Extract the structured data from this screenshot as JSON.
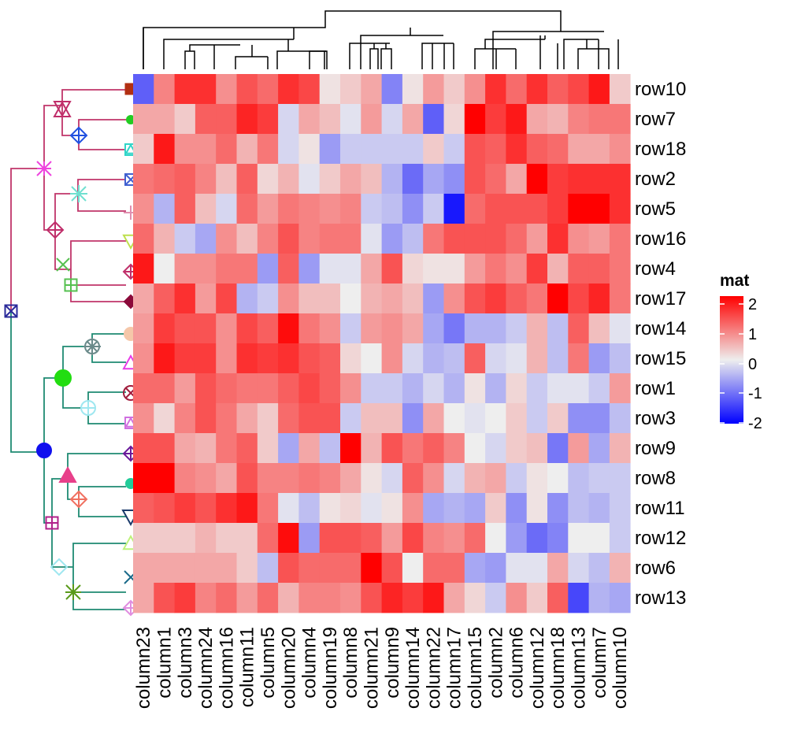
{
  "chart_data": {
    "type": "heatmap",
    "rows": [
      "row10",
      "row7",
      "row18",
      "row2",
      "row5",
      "row16",
      "row4",
      "row17",
      "row14",
      "row15",
      "row1",
      "row3",
      "row9",
      "row8",
      "row11",
      "row12",
      "row6",
      "row13"
    ],
    "columns": [
      "column23",
      "column1",
      "column3",
      "column24",
      "column16",
      "column11",
      "column5",
      "column20",
      "column4",
      "column19",
      "column8",
      "column21",
      "column9",
      "column14",
      "column22",
      "column17",
      "column15",
      "column2",
      "column6",
      "column12",
      "column18",
      "column13",
      "column7",
      "column10"
    ],
    "values": [
      [
        -1.2,
        0.9,
        1.6,
        1.6,
        0.8,
        1.3,
        1.1,
        1.6,
        1.4,
        0.1,
        0.3,
        0.6,
        -0.9,
        0.1,
        0.7,
        0.3,
        0.8,
        1.6,
        1.1,
        1.6,
        1.2,
        1.4,
        1.8,
        0.3
      ],
      [
        0.6,
        0.6,
        0.3,
        1.2,
        1.2,
        1.7,
        1.5,
        -0.2,
        0.6,
        0.4,
        -0.1,
        0.7,
        -0.2,
        0.6,
        -1.2,
        0.2,
        2.1,
        1.5,
        1.8,
        0.6,
        0.5,
        0.9,
        1.0,
        1.0
      ],
      [
        0.3,
        1.8,
        0.8,
        0.8,
        1.1,
        0.5,
        1.0,
        -0.2,
        0.1,
        -0.7,
        -0.3,
        -0.3,
        -0.3,
        -0.3,
        0.3,
        -0.3,
        1.3,
        1.2,
        1.6,
        1.2,
        1.1,
        0.6,
        0.6,
        0.8
      ],
      [
        1.0,
        1.1,
        1.2,
        0.9,
        0.4,
        1.2,
        0.2,
        0.5,
        -0.1,
        0.3,
        0.6,
        0.4,
        -0.5,
        -1.1,
        -0.6,
        -0.8,
        1.3,
        1.1,
        0.6,
        2.0,
        1.5,
        1.6,
        1.6,
        1.6
      ],
      [
        0.8,
        -0.5,
        1.2,
        0.4,
        -0.2,
        1.1,
        0.7,
        1.0,
        0.9,
        0.8,
        0.9,
        -0.3,
        -0.4,
        -0.8,
        -0.3,
        -1.8,
        1.1,
        1.3,
        1.3,
        1.3,
        1.5,
        2.2,
        2.2,
        1.6
      ],
      [
        1.1,
        0.5,
        -0.3,
        -0.6,
        0.8,
        0.4,
        0.9,
        1.3,
        0.9,
        1.0,
        1.0,
        -0.1,
        -0.7,
        -0.4,
        1.0,
        1.3,
        1.3,
        1.3,
        1.1,
        0.7,
        1.6,
        0.8,
        0.7,
        1.0
      ],
      [
        1.8,
        0.0,
        0.8,
        0.8,
        1.0,
        1.0,
        -0.7,
        1.2,
        -0.7,
        -0.1,
        -0.1,
        0.6,
        1.3,
        0.2,
        0.1,
        0.1,
        0.7,
        1.0,
        0.8,
        1.5,
        0.5,
        1.2,
        1.2,
        1.0
      ],
      [
        0.6,
        1.2,
        1.6,
        0.7,
        1.4,
        -0.5,
        -0.3,
        0.8,
        0.4,
        0.4,
        0.0,
        0.5,
        0.6,
        0.4,
        -0.7,
        0.8,
        1.3,
        1.5,
        1.2,
        1.0,
        2.2,
        1.4,
        1.7,
        1.0
      ],
      [
        0.7,
        1.5,
        1.3,
        1.3,
        0.8,
        1.4,
        1.2,
        1.9,
        1.0,
        0.8,
        -0.3,
        0.7,
        0.8,
        0.6,
        -0.6,
        -1.0,
        -0.5,
        -0.5,
        -0.3,
        0.5,
        -0.4,
        1.2,
        0.4,
        -0.1
      ],
      [
        0.8,
        1.8,
        1.5,
        1.5,
        0.8,
        1.6,
        1.5,
        1.6,
        1.3,
        1.2,
        0.2,
        0.0,
        0.8,
        -0.2,
        -0.5,
        -0.4,
        1.2,
        -0.2,
        -0.1,
        0.5,
        -0.4,
        1.0,
        -0.7,
        -0.4
      ],
      [
        1.1,
        1.1,
        0.7,
        1.3,
        1.1,
        1.0,
        1.0,
        1.2,
        1.4,
        1.2,
        0.8,
        -0.3,
        -0.3,
        -0.5,
        -0.2,
        -0.5,
        0.1,
        -0.5,
        0.2,
        -0.3,
        -0.1,
        -0.1,
        -0.3,
        0.7
      ],
      [
        0.8,
        0.2,
        0.9,
        1.3,
        1.0,
        0.6,
        0.3,
        1.1,
        1.3,
        1.3,
        -0.3,
        0.4,
        0.4,
        -0.8,
        0.6,
        0.0,
        -0.1,
        0.0,
        0.3,
        -0.3,
        0.3,
        -0.8,
        -0.8,
        -0.4
      ],
      [
        1.3,
        1.3,
        0.6,
        0.5,
        1.0,
        1.2,
        0.3,
        -0.6,
        0.6,
        -0.4,
        2.0,
        0.5,
        1.3,
        1.0,
        1.2,
        0.9,
        0.0,
        -0.2,
        0.3,
        0.4,
        -1.0,
        0.7,
        -0.6,
        0.5
      ],
      [
        2.1,
        2.1,
        0.9,
        0.8,
        0.6,
        1.3,
        0.9,
        0.9,
        1.0,
        0.9,
        0.6,
        0.1,
        -0.2,
        1.2,
        0.8,
        -0.2,
        0.5,
        0.6,
        -0.3,
        0.1,
        0.0,
        -0.4,
        -0.3,
        -0.3
      ],
      [
        1.2,
        1.3,
        1.5,
        1.3,
        1.6,
        1.8,
        1.0,
        -0.1,
        -0.4,
        0.1,
        0.2,
        -0.1,
        0.1,
        0.8,
        -0.6,
        -0.5,
        -0.6,
        0.3,
        -0.8,
        0.1,
        -0.8,
        -0.4,
        -0.5,
        -0.3
      ],
      [
        0.3,
        0.3,
        0.3,
        0.5,
        0.3,
        0.3,
        1.1,
        1.9,
        -0.7,
        1.3,
        1.3,
        1.2,
        0.7,
        1.4,
        0.9,
        0.8,
        1.1,
        0.0,
        -0.7,
        -1.1,
        -0.9,
        0.0,
        0.0,
        -0.3
      ],
      [
        0.6,
        0.6,
        0.6,
        0.6,
        0.6,
        0.3,
        -0.4,
        1.3,
        1.1,
        1.1,
        1.1,
        2.0,
        1.3,
        0.0,
        1.1,
        1.1,
        -0.6,
        -0.7,
        -0.1,
        -0.1,
        0.6,
        -0.2,
        -0.4,
        0.5
      ],
      [
        0.6,
        1.3,
        1.5,
        0.9,
        1.1,
        0.7,
        1.1,
        0.5,
        0.9,
        0.9,
        0.8,
        1.3,
        1.7,
        1.5,
        1.8,
        0.6,
        0.2,
        -0.3,
        0.8,
        0.3,
        1.2,
        -1.4,
        -0.5,
        -0.6
      ]
    ],
    "legend": {
      "title": "mat",
      "ticks": [
        "2",
        "1",
        "0",
        "-1",
        "-2"
      ],
      "colors": {
        "low": "#0000ff",
        "mid": "#eeeeee",
        "high": "#ff0000"
      }
    },
    "row_dendrogram": "left with point markers",
    "column_dendrogram": "top"
  }
}
